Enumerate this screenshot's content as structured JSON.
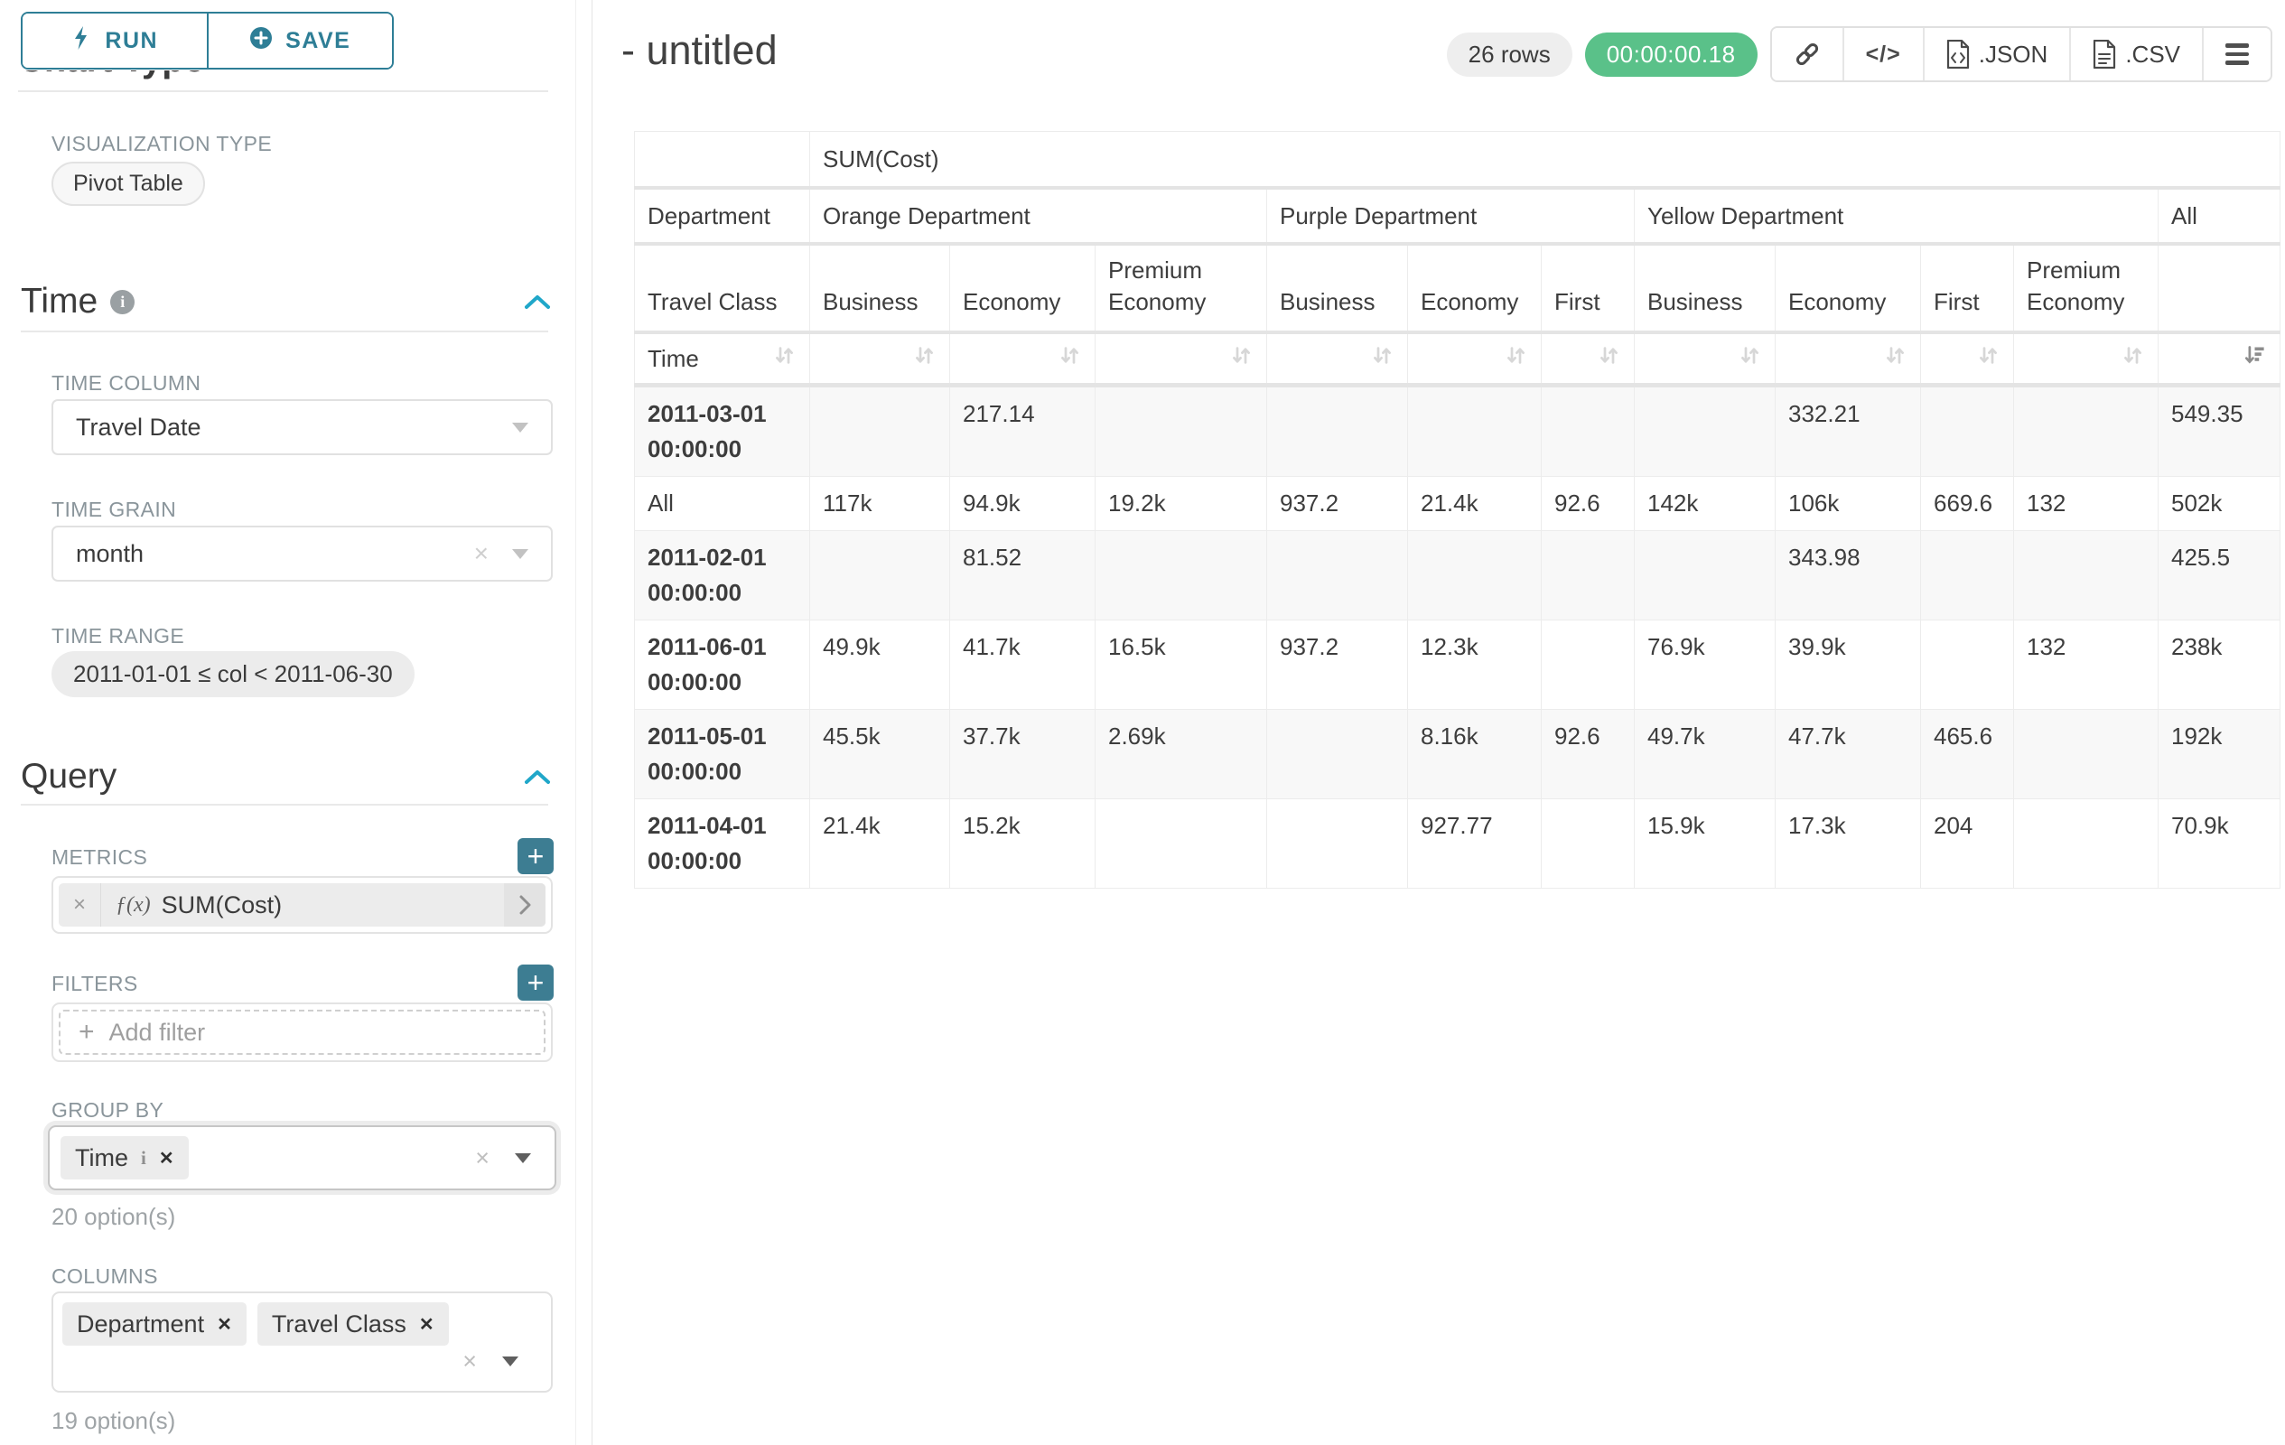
{
  "sidebar": {
    "run_label": "RUN",
    "save_label": "SAVE",
    "section_chart_type": "Chart Type",
    "viz_type_label": "VISUALIZATION TYPE",
    "viz_type_value": "Pivot Table",
    "time_section": "Time",
    "time_column_label": "TIME COLUMN",
    "time_column_value": "Travel Date",
    "time_grain_label": "TIME GRAIN",
    "time_grain_value": "month",
    "time_range_label": "TIME RANGE",
    "time_range_value": "2011-01-01 ≤ col < 2011-06-30",
    "query_section": "Query",
    "metrics_label": "METRICS",
    "metric_fx": "ƒ(x)",
    "metric_value": "SUM(Cost)",
    "filters_label": "FILTERS",
    "add_filter_label": "Add filter",
    "group_by_label": "GROUP BY",
    "group_by_value": "Time",
    "group_by_options": "20 option(s)",
    "columns_label": "COLUMNS",
    "columns_values": [
      "Department",
      "Travel Class"
    ],
    "columns_options": "19 option(s)"
  },
  "header": {
    "title": "- untitled",
    "rows_badge": "26 rows",
    "timer": "00:00:00.18",
    "json_label": ".JSON",
    "csv_label": ".CSV"
  },
  "icons": {
    "run": "bolt-icon",
    "save": "circle-plus-icon",
    "sections": "chevron-up-icon",
    "selects": "caret-down-icon",
    "share": "link-icon",
    "embed": "code-icon",
    "export": "file-icon",
    "more": "menu-icon",
    "sortable": "sort-arrows-icon",
    "sorted_desc": "sort-amount-desc-icon"
  },
  "colors": {
    "accent_teal": "#2e7e96",
    "plus_button": "#3d7d92",
    "section_chevron": "#20a7c9",
    "timer_green": "#5ac189",
    "label_gray": "#8a959b",
    "stripe_gray": "#f8f8f8"
  },
  "pivot": {
    "metric_header": "SUM(Cost)",
    "row_dim_label": "Department",
    "row_dim2_label": "Travel Class",
    "time_label": "Time",
    "groups": [
      {
        "label": "Orange Department",
        "cols": [
          "Business",
          "Economy",
          "Premium Economy"
        ]
      },
      {
        "label": "Purple Department",
        "cols": [
          "Business",
          "Economy",
          "First"
        ]
      },
      {
        "label": "Yellow Department",
        "cols": [
          "Business",
          "Economy",
          "First",
          "Premium Economy"
        ]
      },
      {
        "label": "All",
        "cols": [
          ""
        ]
      }
    ],
    "rows": [
      {
        "label": "2011-03-01 00:00:00",
        "values": [
          "",
          "217.14",
          "",
          "",
          "",
          "",
          "",
          "332.21",
          "",
          "",
          "549.35"
        ]
      },
      {
        "label": "All",
        "values": [
          "117k",
          "94.9k",
          "19.2k",
          "937.2",
          "21.4k",
          "92.6",
          "142k",
          "106k",
          "669.6",
          "132",
          "502k"
        ]
      },
      {
        "label": "2011-02-01 00:00:00",
        "values": [
          "",
          "81.52",
          "",
          "",
          "",
          "",
          "",
          "343.98",
          "",
          "",
          "425.5"
        ]
      },
      {
        "label": "2011-06-01 00:00:00",
        "values": [
          "49.9k",
          "41.7k",
          "16.5k",
          "937.2",
          "12.3k",
          "",
          "76.9k",
          "39.9k",
          "",
          "132",
          "238k"
        ]
      },
      {
        "label": "2011-05-01 00:00:00",
        "values": [
          "45.5k",
          "37.7k",
          "2.69k",
          "",
          "8.16k",
          "92.6",
          "49.7k",
          "47.7k",
          "465.6",
          "",
          "192k"
        ]
      },
      {
        "label": "2011-04-01 00:00:00",
        "values": [
          "21.4k",
          "15.2k",
          "",
          "",
          "927.77",
          "",
          "15.9k",
          "17.3k",
          "204",
          "",
          "70.9k"
        ]
      }
    ]
  }
}
